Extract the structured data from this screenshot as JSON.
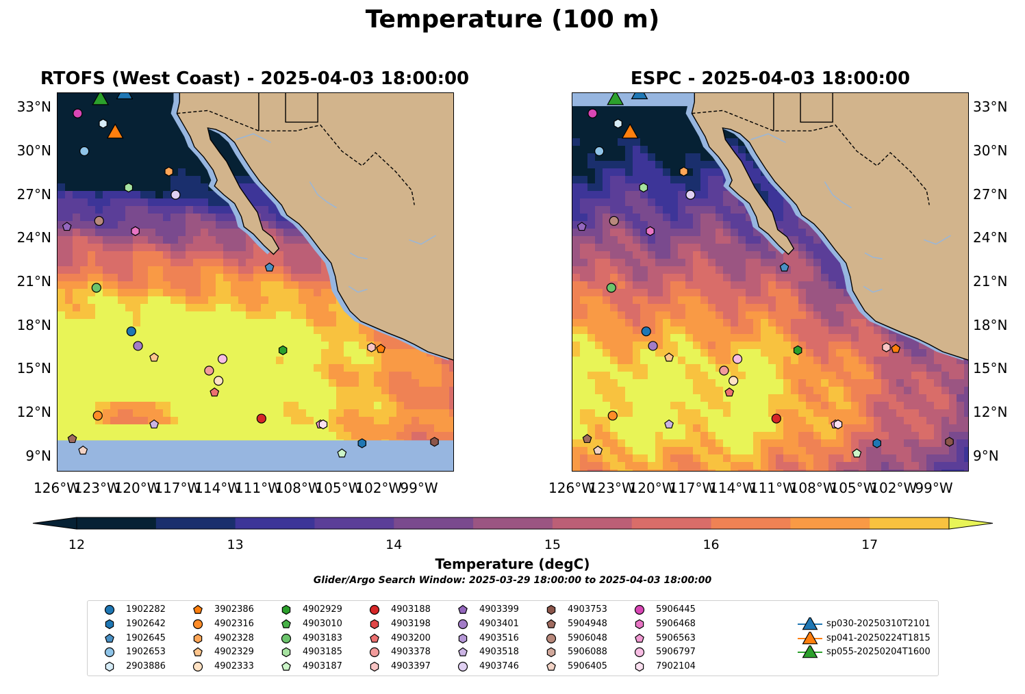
{
  "title": "Temperature (100 m)",
  "panels": [
    {
      "title": "RTOFS (West Coast) - 2025-04-03 18:00:00"
    },
    {
      "title": "ESPC - 2025-04-03 18:00:00"
    }
  ],
  "lat_ticks": [
    "33°N",
    "30°N",
    "27°N",
    "24°N",
    "21°N",
    "18°N",
    "15°N",
    "12°N",
    "9°N"
  ],
  "lon_ticks": [
    "126°W",
    "123°W",
    "120°W",
    "117°W",
    "114°W",
    "111°W",
    "108°W",
    "105°W",
    "102°W",
    "99°W"
  ],
  "map_extent": {
    "lon": [
      -126,
      -96.5
    ],
    "lat": [
      8,
      34
    ]
  },
  "colorbar": {
    "label": "Temperature (degC)",
    "ticks": [
      "12",
      "13",
      "14",
      "15",
      "16",
      "17"
    ],
    "range": [
      12,
      17.5
    ],
    "colors": [
      "#062134",
      "#1a2f6d",
      "#3d3598",
      "#5b3e98",
      "#7a4a8e",
      "#9b5582",
      "#bc5f76",
      "#d96d69",
      "#ef8254",
      "#f99a45",
      "#f8c23f",
      "#e8f457"
    ],
    "extend": "both"
  },
  "colors": {
    "land": "#d2b48c",
    "ocean_shelf": "#97b6e0",
    "river": "#9bb6d6",
    "border": "#000000"
  },
  "search_window": "Glider/Argo Search Window: 2025-03-29 18:00:00 to 2025-04-03 18:00:00",
  "legend": [
    {
      "label": "1902282",
      "marker": "circle",
      "color": "#1f77b4"
    },
    {
      "label": "1902642",
      "marker": "hexagon",
      "color": "#1f77b4"
    },
    {
      "label": "1902645",
      "marker": "pentagon",
      "color": "#4a90c4"
    },
    {
      "label": "1902653",
      "marker": "circle",
      "color": "#8fc4e8"
    },
    {
      "label": "2903886",
      "marker": "hexagon",
      "color": "#d6ecf7"
    },
    {
      "label": "3902386",
      "marker": "pentagon",
      "color": "#ff7f0e"
    },
    {
      "label": "4902316",
      "marker": "circle",
      "color": "#ff8c28"
    },
    {
      "label": "4902328",
      "marker": "hexagon",
      "color": "#ffa657"
    },
    {
      "label": "4902329",
      "marker": "pentagon",
      "color": "#ffc58c"
    },
    {
      "label": "4902333",
      "marker": "circle",
      "color": "#ffe2c4"
    },
    {
      "label": "4902929",
      "marker": "hexagon",
      "color": "#2ca02c"
    },
    {
      "label": "4903010",
      "marker": "pentagon",
      "color": "#47b247"
    },
    {
      "label": "4903183",
      "marker": "circle",
      "color": "#6cc46c"
    },
    {
      "label": "4903185",
      "marker": "hexagon",
      "color": "#a6e2a0"
    },
    {
      "label": "4903187",
      "marker": "pentagon",
      "color": "#ccf5c8"
    },
    {
      "label": "4903188",
      "marker": "circle",
      "color": "#d62728"
    },
    {
      "label": "4903198",
      "marker": "hexagon",
      "color": "#e04748"
    },
    {
      "label": "4903200",
      "marker": "pentagon",
      "color": "#ec7070"
    },
    {
      "label": "4903378",
      "marker": "circle",
      "color": "#f29b9b"
    },
    {
      "label": "4903397",
      "marker": "hexagon",
      "color": "#f8c4c4"
    },
    {
      "label": "4903399",
      "marker": "pentagon",
      "color": "#9467bd"
    },
    {
      "label": "4903401",
      "marker": "circle",
      "color": "#a37cc8"
    },
    {
      "label": "4903516",
      "marker": "hexagon",
      "color": "#b597d6"
    },
    {
      "label": "4903518",
      "marker": "pentagon",
      "color": "#cbb4e4"
    },
    {
      "label": "4903746",
      "marker": "circle",
      "color": "#e0d0f2"
    },
    {
      "label": "4903753",
      "marker": "hexagon",
      "color": "#8c564b"
    },
    {
      "label": "5904948",
      "marker": "pentagon",
      "color": "#a06b5f"
    },
    {
      "label": "5906048",
      "marker": "circle",
      "color": "#b8897c"
    },
    {
      "label": "5906088",
      "marker": "hexagon",
      "color": "#d1a89b"
    },
    {
      "label": "5906405",
      "marker": "pentagon",
      "color": "#f2d3c6"
    },
    {
      "label": "5906445",
      "marker": "circle",
      "color": "#d946b5"
    },
    {
      "label": "5906468",
      "marker": "hexagon",
      "color": "#e875c4"
    },
    {
      "label": "5906563",
      "marker": "pentagon",
      "color": "#f099d2"
    },
    {
      "label": "5906797",
      "marker": "circle",
      "color": "#f7bde3"
    },
    {
      "label": "7902104",
      "marker": "hexagon",
      "color": "#fbe0f0"
    },
    {
      "label": "sp030-20250310T2101",
      "marker": "triangle",
      "color": "#1f77b4"
    },
    {
      "label": "sp041-20250224T1815",
      "marker": "triangle",
      "color": "#ff7f0e"
    },
    {
      "label": "sp055-20250204T1600",
      "marker": "triangle",
      "color": "#2ca02c"
    }
  ],
  "observations": [
    {
      "id": "1902282",
      "lon": -120.5,
      "lat": 17.6
    },
    {
      "id": "1902642",
      "lon": -103.3,
      "lat": 9.9
    },
    {
      "id": "1902645",
      "lon": -110.2,
      "lat": 22.0
    },
    {
      "id": "1902653",
      "lon": -124.0,
      "lat": 30.0
    },
    {
      "id": "2903886",
      "lon": -122.6,
      "lat": 31.9
    },
    {
      "id": "3902386",
      "lon": -101.9,
      "lat": 16.4
    },
    {
      "id": "4902316",
      "lon": -123.0,
      "lat": 11.8
    },
    {
      "id": "4902328",
      "lon": -117.7,
      "lat": 28.6
    },
    {
      "id": "4902329",
      "lon": -118.8,
      "lat": 15.8
    },
    {
      "id": "4902333",
      "lon": -114.0,
      "lat": 14.2
    },
    {
      "id": "4902929",
      "lon": -109.2,
      "lat": 16.3
    },
    {
      "id": "4903183",
      "lon": -123.1,
      "lat": 20.6
    },
    {
      "id": "4903185",
      "lon": -120.7,
      "lat": 27.5
    },
    {
      "id": "4903187",
      "lon": -104.8,
      "lat": 9.2
    },
    {
      "id": "4903188",
      "lon": -110.8,
      "lat": 11.6
    },
    {
      "id": "4903200",
      "lon": -114.3,
      "lat": 13.4
    },
    {
      "id": "4903378",
      "lon": -114.7,
      "lat": 14.9
    },
    {
      "id": "4903397",
      "lon": -102.6,
      "lat": 16.5
    },
    {
      "id": "4903399",
      "lon": -125.3,
      "lat": 24.8
    },
    {
      "id": "4903401",
      "lon": -120.0,
      "lat": 16.6
    },
    {
      "id": "4903518",
      "lon": -118.8,
      "lat": 11.2
    },
    {
      "id": "4903746",
      "lon": -117.2,
      "lat": 27.0
    },
    {
      "id": "4903753",
      "lon": -97.9,
      "lat": 10.0
    },
    {
      "id": "5904948",
      "lon": -124.9,
      "lat": 10.2
    },
    {
      "id": "5906048",
      "lon": -122.9,
      "lat": 25.2
    },
    {
      "id": "5906405",
      "lon": -124.1,
      "lat": 9.4
    },
    {
      "id": "5906445",
      "lon": -124.5,
      "lat": 32.6
    },
    {
      "id": "5906468",
      "lon": -120.2,
      "lat": 24.5
    },
    {
      "id": "5906563",
      "lon": -106.4,
      "lat": 11.2
    },
    {
      "id": "5906797",
      "lon": -113.7,
      "lat": 15.7
    },
    {
      "id": "7902104",
      "lon": -106.2,
      "lat": 11.2
    },
    {
      "id": "sp030-20250310T2101",
      "lon": -121.0,
      "lat": 34.0
    },
    {
      "id": "sp041-20250224T1815",
      "lon": -121.7,
      "lat": 31.3
    },
    {
      "id": "sp055-20250204T1600",
      "lon": -122.8,
      "lat": 33.6
    }
  ]
}
